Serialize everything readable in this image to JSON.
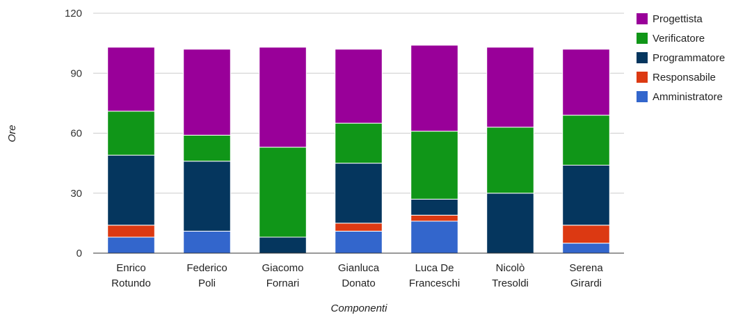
{
  "chart_data": {
    "type": "bar",
    "stacked": true,
    "title": "",
    "xlabel": "Componenti",
    "ylabel": "Ore",
    "ylim": [
      0,
      120
    ],
    "yticks": [
      0,
      30,
      60,
      90,
      120
    ],
    "grid": true,
    "legend_position": "right",
    "categories": [
      [
        "Enrico",
        "Rotundo"
      ],
      [
        "Federico",
        "Poli"
      ],
      [
        "Giacomo",
        "Fornari"
      ],
      [
        "Gianluca",
        "Donato"
      ],
      [
        "Luca De",
        "Franceschi"
      ],
      [
        "Nicolò",
        "Tresoldi"
      ],
      [
        "Serena",
        "Girardi"
      ]
    ],
    "series": [
      {
        "name": "Amministratore",
        "color": "#3366cc",
        "values": [
          8,
          11,
          0,
          11,
          16,
          0,
          5
        ]
      },
      {
        "name": "Responsabile",
        "color": "#dc3912",
        "values": [
          6,
          0,
          0,
          4,
          3,
          0,
          9
        ]
      },
      {
        "name": "Programmatore",
        "color": "#05365e",
        "values": [
          35,
          35,
          8,
          30,
          8,
          30,
          30
        ]
      },
      {
        "name": "Verificatore",
        "color": "#109618",
        "values": [
          22,
          13,
          45,
          20,
          34,
          33,
          25
        ]
      },
      {
        "name": "Progettista",
        "color": "#990099",
        "values": [
          32,
          43,
          50,
          37,
          43,
          40,
          33
        ]
      }
    ],
    "legend_order": [
      "Progettista",
      "Verificatore",
      "Programmatore",
      "Responsabile",
      "Amministratore"
    ]
  }
}
